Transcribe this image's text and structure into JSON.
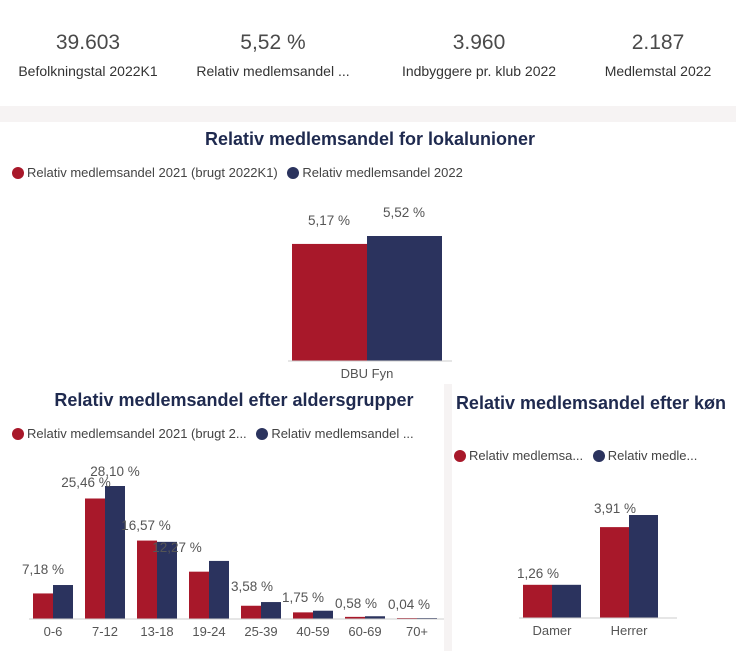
{
  "colors": {
    "series_2021": "#a8182a",
    "series_2022": "#2b335e",
    "title": "#1f2a4f"
  },
  "kpis": [
    {
      "value": "39.603",
      "label": "Befolkningstal 2022K1"
    },
    {
      "value": "5,52 %",
      "label": "Relativ medlemsandel ..."
    },
    {
      "value": "3.960",
      "label": "Indbyggere pr. klub 2022"
    },
    {
      "value": "2.187",
      "label": "Medlemstal 2022"
    }
  ],
  "chart_data": [
    {
      "type": "bar",
      "title": "Relativ medlemsandel for lokalunioner",
      "legend": [
        "Relativ medlemsandel 2021 (brugt 2022K1)",
        "Relativ medlemsandel 2022"
      ],
      "categories": [
        "DBU Fyn"
      ],
      "series": [
        {
          "name": "Relativ medlemsandel 2021 (brugt 2022K1)",
          "values": [
            5.17
          ],
          "labels": [
            "5,17 %"
          ]
        },
        {
          "name": "Relativ medlemsandel 2022",
          "values": [
            5.52
          ],
          "labels": [
            "5,52 %"
          ]
        }
      ]
    },
    {
      "type": "bar",
      "title": "Relativ medlemsandel efter aldersgrupper",
      "legend": [
        "Relativ medlemsandel 2021 (brugt 2...",
        "Relativ medlemsandel ..."
      ],
      "categories": [
        "0-6",
        "7-12",
        "13-18",
        "19-24",
        "25-39",
        "40-59",
        "60-69",
        "70+"
      ],
      "series": [
        {
          "name": "Relativ medlemsandel 2021 (brugt 2...",
          "values": [
            5.4,
            25.46,
            16.57,
            10.0,
            2.8,
            1.4,
            0.45,
            0.03
          ]
        },
        {
          "name": "Relativ medlemsandel ...",
          "values": [
            7.18,
            28.1,
            16.3,
            12.27,
            3.58,
            1.75,
            0.58,
            0.04
          ]
        }
      ],
      "data_labels": [
        "7,18 %",
        "25,46 %",
        "28,10 %",
        "16,57 %",
        "12,27 %",
        "3,58 %",
        "1,75 %",
        "0,58 %",
        "0,04 %"
      ]
    },
    {
      "type": "bar",
      "title": "Relativ medlemsandel efter køn",
      "legend": [
        "Relativ medlemsa...",
        "Relativ medle..."
      ],
      "categories": [
        "Damer",
        "Herrer"
      ],
      "series": [
        {
          "name": "Relativ medlemsa...",
          "values": [
            1.26,
            3.45
          ]
        },
        {
          "name": "Relativ medle...",
          "values": [
            1.26,
            3.91
          ]
        }
      ],
      "data_labels": [
        "1,26 %",
        "3,91 %"
      ]
    }
  ]
}
